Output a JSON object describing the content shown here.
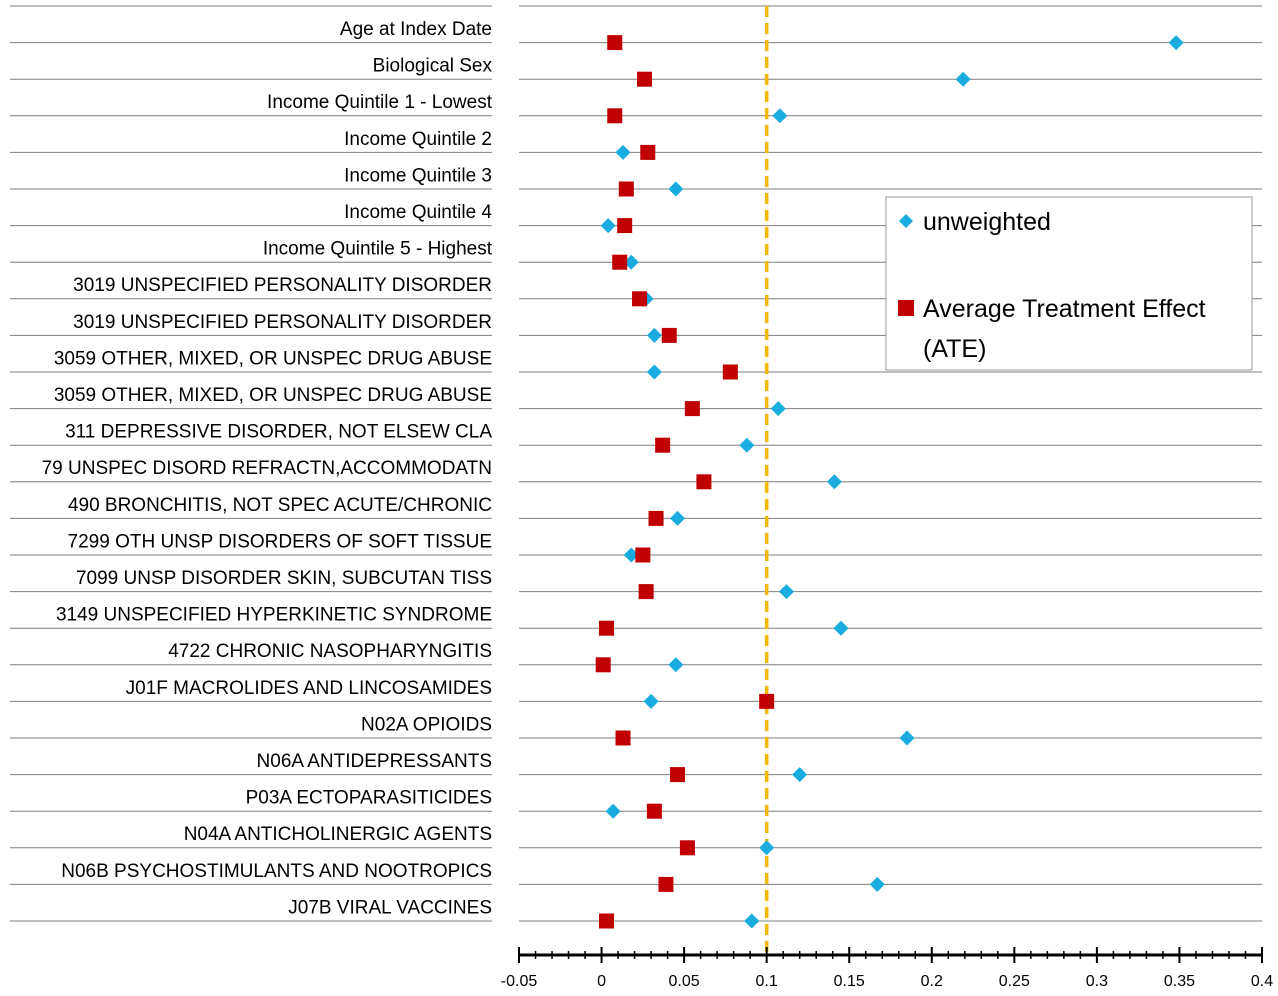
{
  "chart_data": {
    "type": "scatter",
    "orientation": "horizontal-categories",
    "categories": [
      "Age at Index Date",
      "Biological Sex",
      "Income Quintile 1 - Lowest",
      "Income Quintile 2",
      "Income Quintile 3",
      "Income Quintile 4",
      "Income Quintile 5 - Highest",
      "3019 UNSPECIFIED PERSONALITY DISORDER",
      "3019 UNSPECIFIED PERSONALITY DISORDER",
      "3059 OTHER, MIXED, OR UNSPEC DRUG ABUSE",
      "3059 OTHER, MIXED, OR UNSPEC DRUG ABUSE",
      "311  DEPRESSIVE DISORDER, NOT ELSEW CLA",
      "79 UNSPEC DISORD REFRACTN,ACCOMMODATN",
      "490  BRONCHITIS, NOT SPEC ACUTE/CHRONIC",
      "7299 OTH UNSP DISORDERS OF SOFT TISSUE",
      "7099 UNSP DISORDER SKIN, SUBCUTAN TISS",
      "3149 UNSPECIFIED HYPERKINETIC SYNDROME",
      "4722 CHRONIC NASOPHARYNGITIS",
      "J01F MACROLIDES AND LINCOSAMIDES",
      "N02A OPIOIDS",
      "N06A ANTIDEPRESSANTS",
      "P03A ECTOPARASITICIDES",
      "N04A ANTICHOLINERGIC AGENTS",
      "N06B PSYCHOSTIMULANTS AND NOOTROPICS",
      "J07B VIRAL VACCINES"
    ],
    "series": [
      {
        "name": "unweighted",
        "marker": "diamond",
        "color": "#1aabe0",
        "values": [
          0.348,
          0.219,
          0.108,
          0.013,
          0.045,
          0.004,
          0.018,
          0.027,
          0.032,
          0.032,
          0.107,
          0.088,
          0.141,
          0.046,
          0.018,
          0.112,
          0.145,
          0.045,
          0.03,
          0.185,
          0.12,
          0.007,
          0.1,
          0.167,
          0.091
        ]
      },
      {
        "name": "Average Treatment Effect (ATE)",
        "legend_lines": [
          "Average Treatment Effect",
          "(ATE)"
        ],
        "marker": "square",
        "color": "#c00000",
        "values": [
          0.008,
          0.026,
          0.008,
          0.028,
          0.015,
          0.014,
          0.011,
          0.023,
          0.041,
          0.078,
          0.055,
          0.037,
          0.062,
          0.033,
          0.025,
          0.027,
          0.003,
          0.001,
          0.1,
          0.013,
          0.046,
          0.032,
          0.052,
          0.039,
          0.003
        ]
      }
    ],
    "xlim": [
      -0.05,
      0.4
    ],
    "xticks": [
      "-0.05",
      "0",
      "0.05",
      "0.1",
      "0.15",
      "0.2",
      "0.25",
      "0.3",
      "0.35",
      "0.4"
    ],
    "reference_line": {
      "x": 0.1,
      "color": "#f5b800",
      "style": "dashed"
    },
    "grid": "horizontal",
    "legend_position": "right"
  }
}
